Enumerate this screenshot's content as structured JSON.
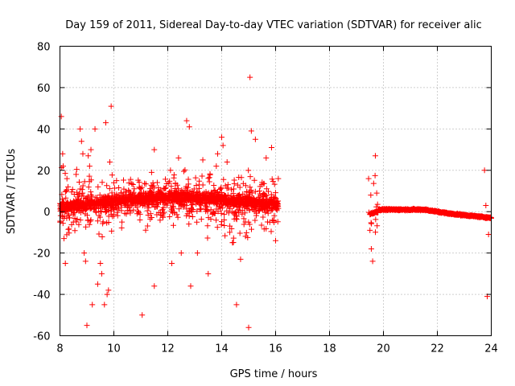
{
  "chart_data": {
    "type": "scatter",
    "title": "Day 159 of 2011, Sidereal Day-to-day VTEC variation (SDTVAR) for receiver alic",
    "xlabel": "GPS time / hours",
    "ylabel": "SDTVAR / TECUs",
    "xlim": [
      8,
      24
    ],
    "ylim": [
      -60,
      80
    ],
    "grid": true,
    "marker": "+",
    "color": "#ff0000",
    "xticks": [
      8,
      10,
      12,
      14,
      16,
      18,
      20,
      22,
      24
    ],
    "yticks": [
      -60,
      -40,
      -20,
      0,
      20,
      40,
      60,
      80
    ],
    "xtick_labels": [
      "8",
      "10",
      "12",
      "14",
      "16",
      "18",
      "20",
      "22",
      "24"
    ],
    "ytick_labels": [
      "-60",
      "-40",
      "-20",
      "0",
      "20",
      "40",
      "60",
      "80"
    ],
    "series": [
      {
        "name": "SDTVAR",
        "points": [
          [
            8.05,
            46
          ],
          [
            8.1,
            28
          ],
          [
            8.12,
            22
          ],
          [
            8.15,
            -13
          ],
          [
            8.2,
            -25
          ],
          [
            8.3,
            12
          ],
          [
            8.5,
            -5
          ],
          [
            8.6,
            18
          ],
          [
            8.75,
            40
          ],
          [
            8.8,
            34
          ],
          [
            8.85,
            28
          ],
          [
            8.9,
            -20
          ],
          [
            8.95,
            -24
          ],
          [
            9.0,
            -55
          ],
          [
            9.05,
            27
          ],
          [
            9.1,
            22
          ],
          [
            9.15,
            30
          ],
          [
            9.2,
            -45
          ],
          [
            9.3,
            40
          ],
          [
            9.4,
            -35
          ],
          [
            9.5,
            -25
          ],
          [
            9.55,
            -30
          ],
          [
            9.65,
            -45
          ],
          [
            9.7,
            43
          ],
          [
            9.75,
            -40
          ],
          [
            9.8,
            -38
          ],
          [
            9.85,
            24
          ],
          [
            9.9,
            51
          ],
          [
            10.0,
            14
          ],
          [
            10.1,
            15
          ],
          [
            10.3,
            -5
          ],
          [
            11.05,
            -50
          ],
          [
            11.4,
            19
          ],
          [
            11.5,
            30
          ],
          [
            11.5,
            -36
          ],
          [
            12.1,
            20
          ],
          [
            12.15,
            -25
          ],
          [
            12.4,
            26
          ],
          [
            12.5,
            -20
          ],
          [
            12.7,
            44
          ],
          [
            12.8,
            41
          ],
          [
            12.85,
            -36
          ],
          [
            13.1,
            -20
          ],
          [
            13.3,
            25
          ],
          [
            13.5,
            -30
          ],
          [
            13.8,
            22
          ],
          [
            13.85,
            28
          ],
          [
            14.0,
            36
          ],
          [
            14.05,
            32
          ],
          [
            14.2,
            24
          ],
          [
            14.3,
            -10
          ],
          [
            14.4,
            -15
          ],
          [
            14.55,
            -45
          ],
          [
            14.7,
            -23
          ],
          [
            15.0,
            -56
          ],
          [
            15.05,
            65
          ],
          [
            15.1,
            39
          ],
          [
            15.25,
            35
          ],
          [
            15.4,
            10
          ],
          [
            15.65,
            26
          ],
          [
            15.85,
            31
          ],
          [
            16.0,
            -14
          ],
          [
            16.1,
            16
          ],
          [
            19.45,
            16
          ],
          [
            19.5,
            -9
          ],
          [
            19.55,
            -18
          ],
          [
            19.6,
            -24
          ],
          [
            19.7,
            27
          ],
          [
            19.75,
            9
          ],
          [
            23.75,
            20
          ],
          [
            23.8,
            3
          ],
          [
            23.85,
            -41
          ],
          [
            23.9,
            -11
          ]
        ],
        "segments": [
          {
            "x_start": 8.0,
            "x_end": 10.0,
            "y_start": 2,
            "y_end": 5
          },
          {
            "x_start": 10.0,
            "x_end": 11.5,
            "y_start": 5,
            "y_end": 7
          },
          {
            "x_start": 11.5,
            "x_end": 13.0,
            "y_start": 7,
            "y_end": 7
          },
          {
            "x_start": 13.0,
            "x_end": 14.5,
            "y_start": 7,
            "y_end": 5
          },
          {
            "x_start": 14.5,
            "x_end": 16.1,
            "y_start": 5,
            "y_end": 3
          },
          {
            "x_start": 19.5,
            "x_end": 19.8,
            "y_start": -1,
            "y_end": 0
          },
          {
            "x_start": 19.8,
            "x_end": 21.5,
            "y_start": 1,
            "y_end": 1
          },
          {
            "x_start": 21.5,
            "x_end": 22.5,
            "y_start": 1,
            "y_end": -1
          },
          {
            "x_start": 22.5,
            "x_end": 24.0,
            "y_start": -1,
            "y_end": -3
          }
        ]
      }
    ]
  }
}
